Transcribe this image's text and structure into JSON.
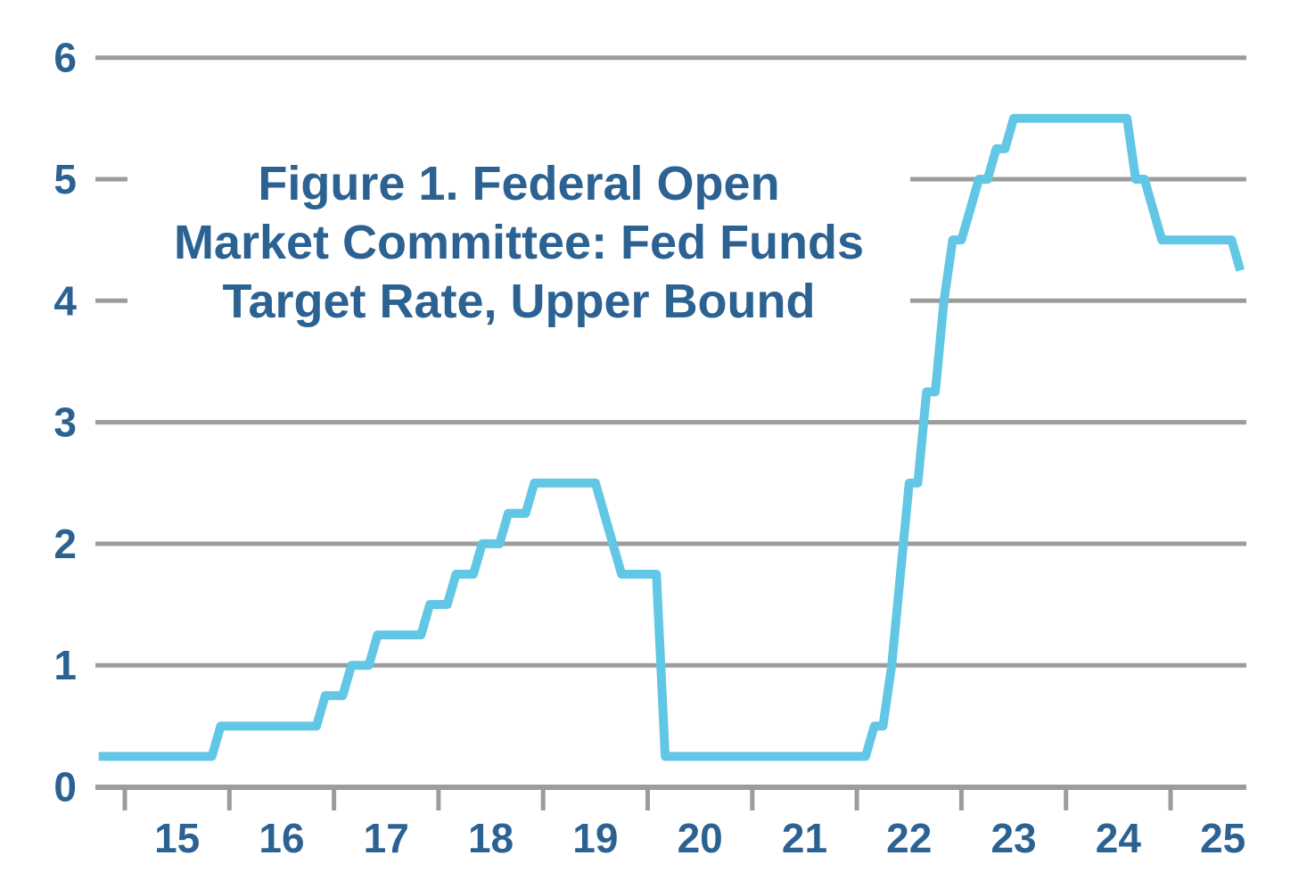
{
  "page": {
    "background_color": "#ffffff"
  },
  "chart": {
    "title_lines": [
      "Figure 1. Federal Open",
      "Market Committee: Fed Funds",
      "Target Rate, Upper Bound"
    ],
    "colors": {
      "title_text": "#2b6292",
      "axis_text": "#2b6292",
      "line": "#61c7e5",
      "gridline": "#9c9c9c",
      "title_box_bg": "#ffffff"
    }
  },
  "chart_data": {
    "type": "line",
    "title": "Figure 1. Federal Open Market Committee: Fed Funds Target Rate, Upper Bound",
    "series_name": "Fed Funds Target Rate, Upper Bound",
    "unit": "percent",
    "sampling": "monthly",
    "interpolation": "linear between monthly points (rate changes appear as one-month risers)",
    "x_range_months": [
      "2014-10",
      "2025-09"
    ],
    "ylim": [
      0,
      6
    ],
    "y_tick_labels": [
      "0",
      "1",
      "2",
      "3",
      "4",
      "5",
      "6"
    ],
    "x_tick_years": [
      2015,
      2016,
      2017,
      2018,
      2019,
      2020,
      2021,
      2022,
      2023,
      2024,
      2025
    ],
    "x_tick_labels": [
      "15",
      "16",
      "17",
      "18",
      "19",
      "20",
      "21",
      "22",
      "23",
      "24",
      "25"
    ],
    "grid": "horizontal gridlines on, no vertical gridlines",
    "legend": "none",
    "rate_steps": [
      [
        "2014-10",
        0.25
      ],
      [
        "2015-12",
        0.5
      ],
      [
        "2016-12",
        0.75
      ],
      [
        "2017-03",
        1.0
      ],
      [
        "2017-06",
        1.25
      ],
      [
        "2017-12",
        1.5
      ],
      [
        "2018-03",
        1.75
      ],
      [
        "2018-06",
        2.0
      ],
      [
        "2018-09",
        2.25
      ],
      [
        "2018-12",
        2.5
      ],
      [
        "2019-08",
        2.25
      ],
      [
        "2019-09",
        2.0
      ],
      [
        "2019-10",
        1.75
      ],
      [
        "2020-03",
        0.25
      ],
      [
        "2022-03",
        0.5
      ],
      [
        "2022-05",
        1.0
      ],
      [
        "2022-06",
        1.75
      ],
      [
        "2022-07",
        2.5
      ],
      [
        "2022-09",
        3.25
      ],
      [
        "2022-11",
        4.0
      ],
      [
        "2022-12",
        4.5
      ],
      [
        "2023-02",
        4.75
      ],
      [
        "2023-03",
        5.0
      ],
      [
        "2023-05",
        5.25
      ],
      [
        "2023-07",
        5.5
      ],
      [
        "2024-09",
        5.0
      ],
      [
        "2024-11",
        4.75
      ],
      [
        "2024-12",
        4.5
      ],
      [
        "2025-09",
        4.25
      ]
    ]
  }
}
